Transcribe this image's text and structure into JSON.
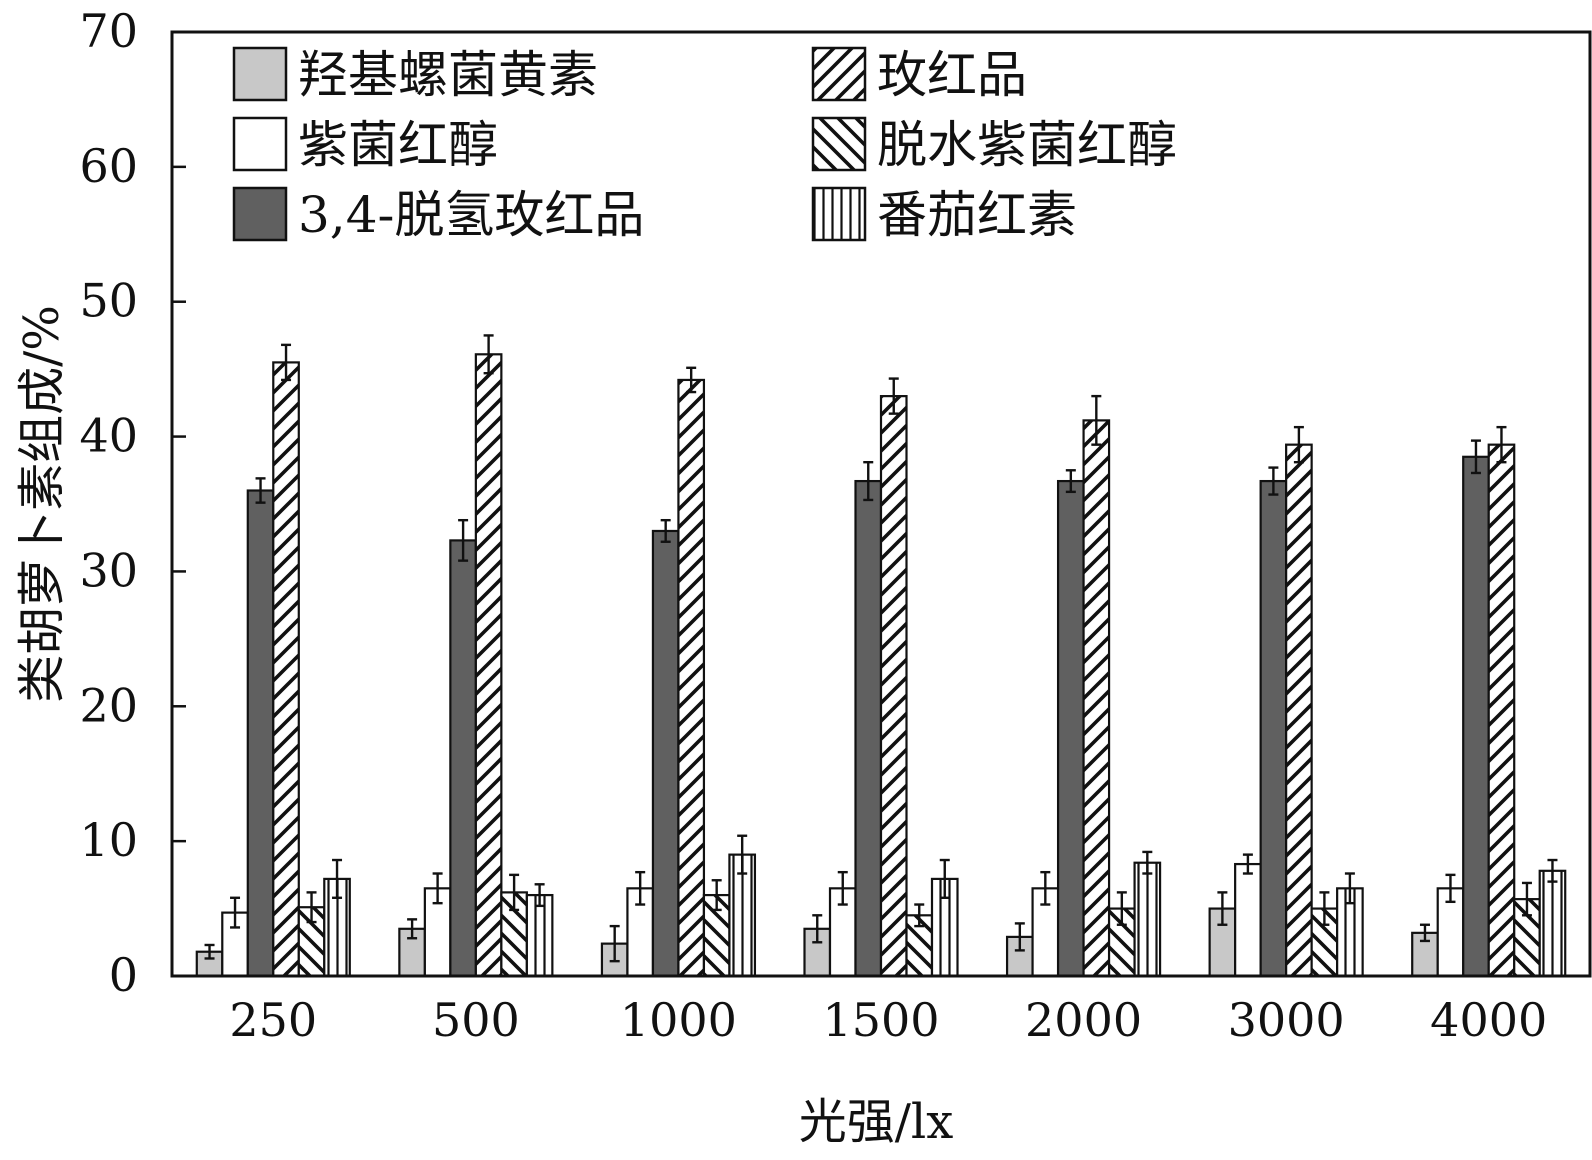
{
  "chart_data": {
    "type": "bar",
    "title": "",
    "xlabel": "光强/lx",
    "ylabel": "类胡萝卜素组成/%",
    "ylim": [
      0,
      70
    ],
    "yticks": [
      0,
      10,
      20,
      30,
      40,
      50,
      60,
      70
    ],
    "grid": false,
    "legend_position": "top-left",
    "categories": [
      "250",
      "500",
      "1000",
      "1500",
      "2000",
      "3000",
      "4000"
    ],
    "series": [
      {
        "name": "羟基螺菌黄素",
        "pattern": "solid-light",
        "color": "#c8c8c8",
        "values": [
          1.8,
          3.5,
          2.4,
          3.5,
          2.9,
          5.0,
          3.2
        ],
        "errors": [
          0.5,
          0.7,
          1.3,
          1.0,
          1.0,
          1.2,
          0.6
        ]
      },
      {
        "name": "紫菌红醇",
        "pattern": "open",
        "color": "#ffffff",
        "values": [
          4.7,
          6.5,
          6.5,
          6.5,
          6.5,
          8.3,
          6.5
        ],
        "errors": [
          1.1,
          1.1,
          1.2,
          1.2,
          1.2,
          0.7,
          1.0
        ]
      },
      {
        "name": "3,4-脱氢玫红品",
        "pattern": "solid-dark",
        "color": "#606060",
        "values": [
          36.0,
          32.3,
          33.0,
          36.7,
          36.7,
          36.7,
          38.5
        ],
        "errors": [
          0.9,
          1.5,
          0.8,
          1.4,
          0.8,
          1.0,
          1.2
        ]
      },
      {
        "name": "玫红品",
        "pattern": "diagonal-up",
        "color": "#ffffff",
        "values": [
          45.5,
          46.1,
          44.2,
          43.0,
          41.2,
          39.4,
          39.4
        ],
        "errors": [
          1.3,
          1.4,
          0.9,
          1.3,
          1.8,
          1.3,
          1.3
        ]
      },
      {
        "name": "脱水紫菌红醇",
        "pattern": "diagonal-down",
        "color": "#ffffff",
        "values": [
          5.1,
          6.2,
          6.0,
          4.5,
          5.0,
          5.0,
          5.7
        ],
        "errors": [
          1.1,
          1.3,
          1.1,
          0.8,
          1.2,
          1.2,
          1.2
        ]
      },
      {
        "name": "番茄红素",
        "pattern": "vertical",
        "color": "#ffffff",
        "values": [
          7.2,
          6.0,
          9.0,
          7.2,
          8.4,
          6.5,
          7.8
        ],
        "errors": [
          1.4,
          0.8,
          1.4,
          1.4,
          0.8,
          1.1,
          0.8
        ]
      }
    ]
  }
}
